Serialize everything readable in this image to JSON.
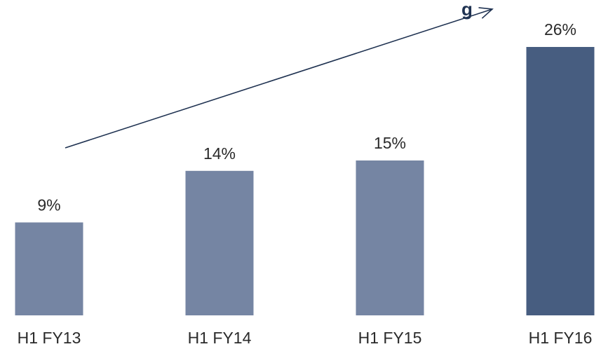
{
  "chart_data": {
    "type": "bar",
    "title_fragment": "g",
    "categories": [
      "H1 FY13",
      "H1 FY14",
      "H1 FY15",
      "H1 FY16"
    ],
    "values": [
      9,
      14,
      15,
      26
    ],
    "value_labels": [
      "9%",
      "14%",
      "15%",
      "26%"
    ],
    "unit": "%",
    "ylim": [
      0,
      26
    ],
    "grid": false,
    "legend": "none",
    "colors": {
      "bar": "#7585a3",
      "highlight_bar": "#475d80",
      "trend_arrow": "#1f3251",
      "text": "#2a2a2a"
    },
    "highlight_index": 3,
    "trend_arrow": true
  }
}
